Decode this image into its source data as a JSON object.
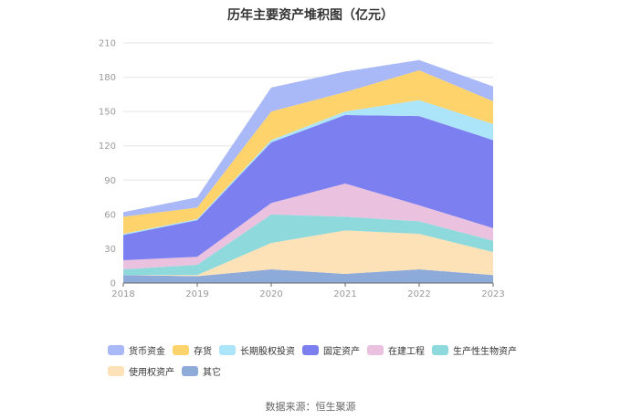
{
  "chart_data": {
    "type": "area",
    "stacked": true,
    "title": "历年主要资产堆积图（亿元）",
    "x": [
      "2018",
      "2019",
      "2020",
      "2021",
      "2022",
      "2023"
    ],
    "ylim": [
      0,
      210
    ],
    "yticks": [
      "0",
      "30",
      "60",
      "90",
      "120",
      "150",
      "180",
      "210"
    ],
    "grid": true,
    "legend_position": "bottom",
    "series": [
      {
        "name": "其它",
        "color": "#8eaad8",
        "values": [
          7,
          6,
          12,
          8,
          12,
          7
        ]
      },
      {
        "name": "使用权资产",
        "color": "#fde2b7",
        "values": [
          0,
          1,
          23,
          38,
          31,
          20
        ]
      },
      {
        "name": "生产性生物资产",
        "color": "#8ed9dc",
        "values": [
          5,
          9,
          25,
          12,
          11,
          10
        ]
      },
      {
        "name": "在建工程",
        "color": "#eac2df",
        "values": [
          8,
          7,
          10,
          29,
          14,
          11
        ]
      },
      {
        "name": "固定资产",
        "color": "#7b7ff0",
        "values": [
          22,
          32,
          53,
          60,
          78,
          77
        ]
      },
      {
        "name": "长期股权投资",
        "color": "#ace4fa",
        "values": [
          1,
          1,
          2,
          3,
          14,
          14
        ]
      },
      {
        "name": "存货",
        "color": "#ffd36b",
        "values": [
          15,
          10,
          25,
          17,
          26,
          20
        ]
      },
      {
        "name": "货币资金",
        "color": "#a9b9f7",
        "values": [
          4,
          9,
          21,
          18,
          9,
          13
        ]
      }
    ]
  },
  "legend_order": [
    "货币资金",
    "存货",
    "长期股权投资",
    "固定资产",
    "在建工程",
    "生产性生物资产",
    "使用权资产",
    "其它"
  ],
  "source": "数据来源：恒生聚源"
}
